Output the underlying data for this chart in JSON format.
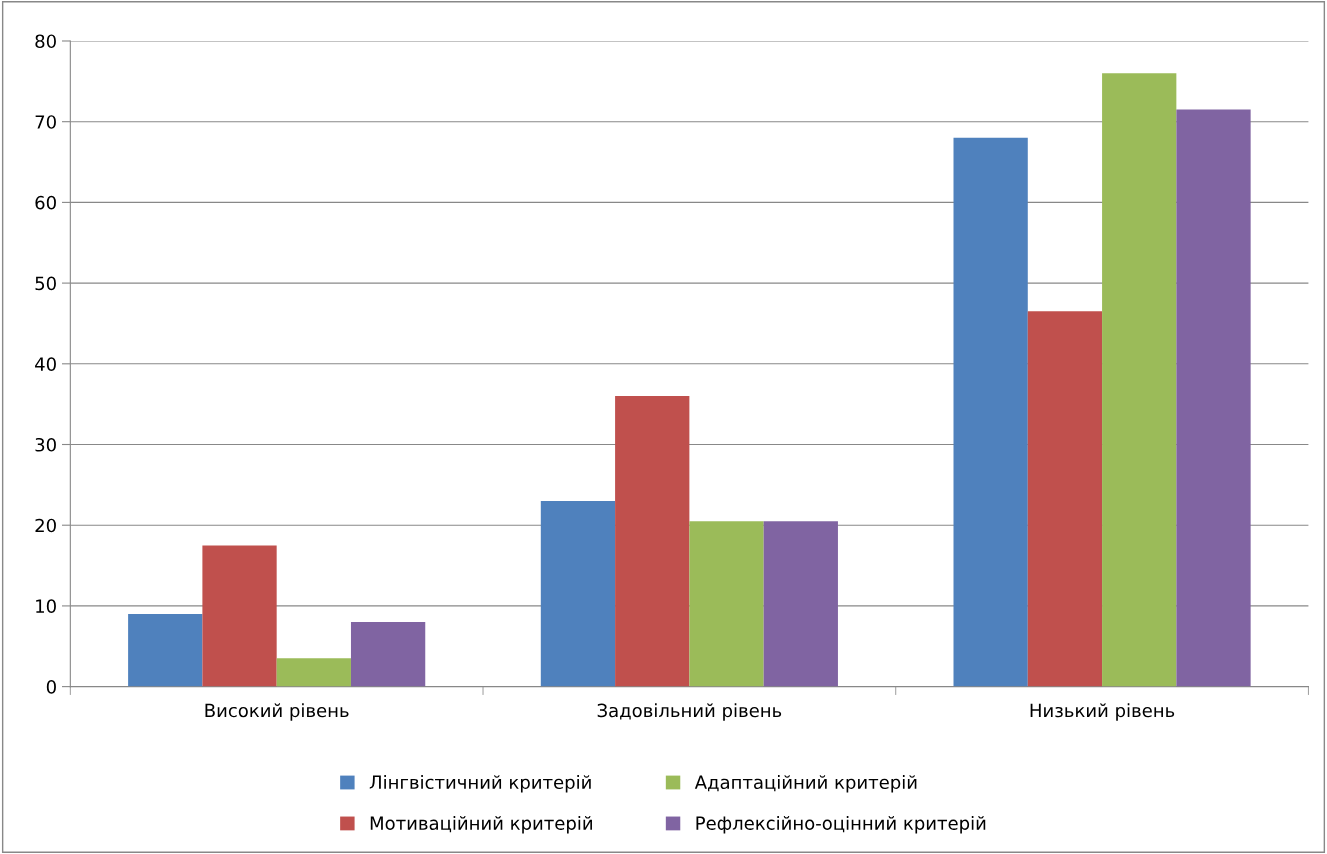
{
  "chart_data": {
    "type": "bar",
    "categories": [
      "Високий рівень",
      "Задовільний рівень",
      "Низький рівень"
    ],
    "series": [
      {
        "name": "Лінгвістичний критерій",
        "color": "#4f81bd",
        "values": [
          9,
          23,
          68
        ]
      },
      {
        "name": "Мотиваційний критерій",
        "color": "#c0504d",
        "values": [
          17.5,
          36,
          46.5
        ]
      },
      {
        "name": "Адаптаційний критерій",
        "color": "#9bbb59",
        "values": [
          3.5,
          20.5,
          76
        ]
      },
      {
        "name": "Рефлексійно-оцінний критерій",
        "color": "#8064a2",
        "values": [
          8,
          20.5,
          71.5
        ]
      }
    ],
    "ylim": [
      0,
      80
    ],
    "yticks": [
      0,
      10,
      20,
      30,
      40,
      50,
      60,
      70,
      80
    ],
    "grid": "y",
    "legend": "bottom"
  }
}
